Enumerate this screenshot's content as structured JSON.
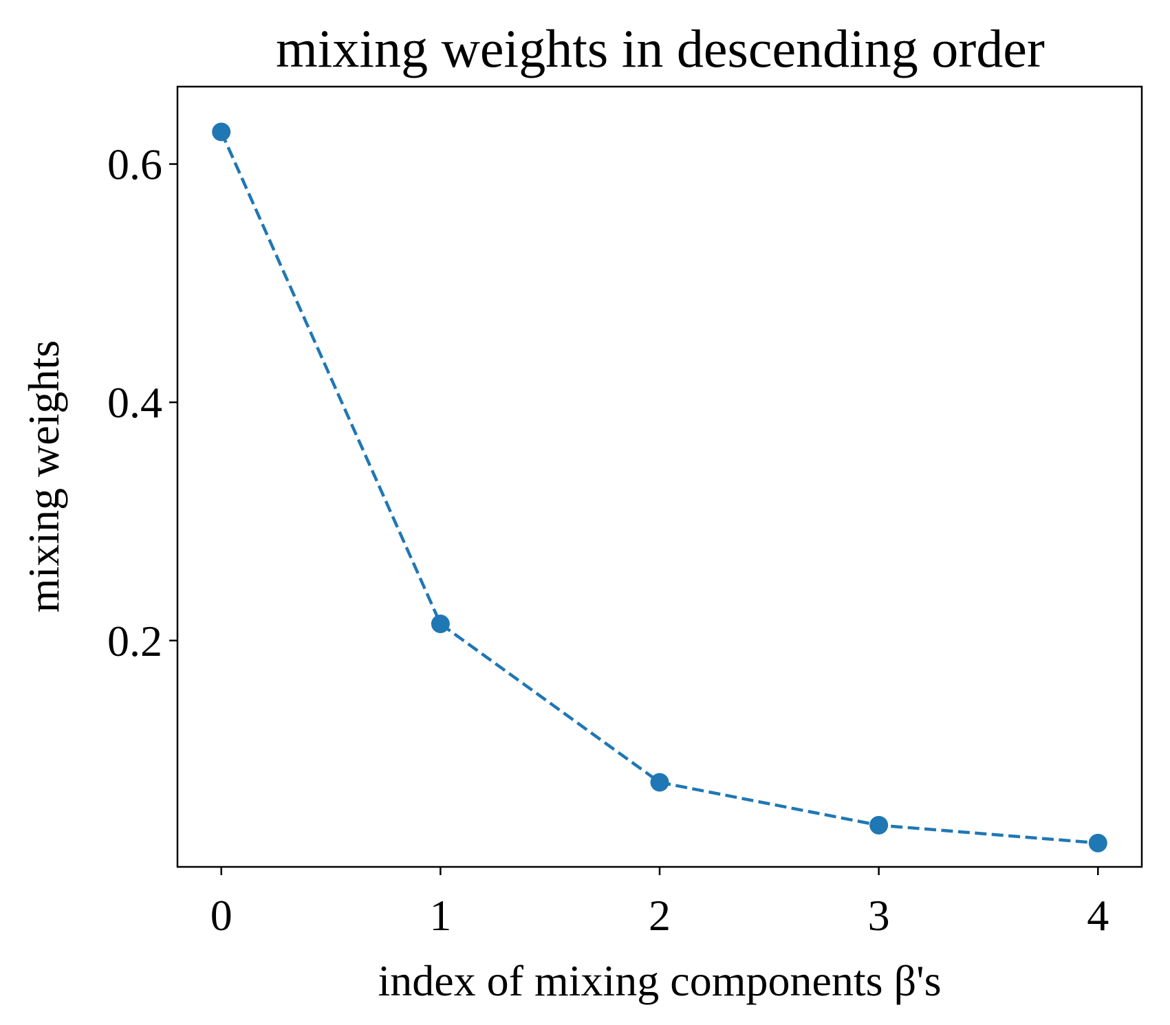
{
  "chart_data": {
    "type": "line",
    "title": "mixing weights in descending order",
    "xlabel": "index of mixing components β's",
    "ylabel": "mixing weights",
    "x": [
      0,
      1,
      2,
      3,
      4
    ],
    "xticks": [
      "0",
      "1",
      "2",
      "3",
      "4"
    ],
    "xlim": [
      -0.2,
      4.2
    ],
    "yticks": [
      "0.2",
      "0.4",
      "0.6"
    ],
    "ytick_values": [
      0.2,
      0.4,
      0.6
    ],
    "ylim": [
      0.01,
      0.665
    ],
    "series": [
      {
        "values": [
          0.627,
          0.214,
          0.081,
          0.045,
          0.03
        ],
        "color": "#1f77b4",
        "line_style": "dashed",
        "marker": "circle"
      }
    ],
    "grid": false,
    "legend": "none"
  }
}
